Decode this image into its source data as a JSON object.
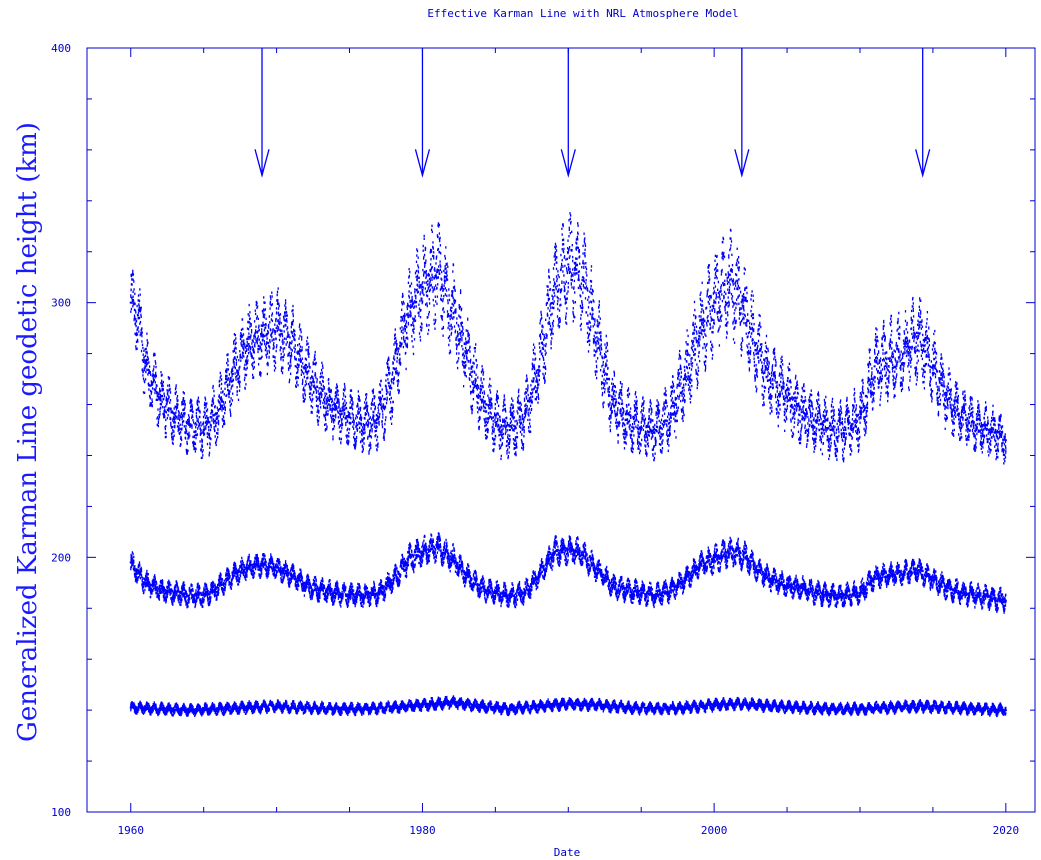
{
  "chart_data": {
    "type": "scatter",
    "title": "Effective Karman Line with NRL Atmosphere Model",
    "xlabel": "Date",
    "ylabel": "Generalized Karman Line geodetic height (km)",
    "xlim": [
      1957,
      2022
    ],
    "ylim": [
      100,
      400
    ],
    "x_ticks": [
      1960,
      1980,
      2000,
      2020
    ],
    "x_tick_labels": [
      "1960",
      "1980",
      "2000",
      "2020"
    ],
    "y_ticks": [
      100,
      200,
      300,
      400
    ],
    "y_tick_labels": [
      "100",
      "200",
      "300",
      "400"
    ],
    "grid": false,
    "color": "#0000ff",
    "series": [
      {
        "x": [
          1960.0,
          1960.5,
          1961.0,
          1962.0,
          1963.0,
          1964.0,
          1965.0,
          1966.0,
          1967.0,
          1968.0,
          1969.0,
          1970.0,
          1971.0,
          1972.0,
          1973.0,
          1974.0,
          1975.0,
          1976.0,
          1977.0,
          1978.0,
          1979.0,
          1980.0,
          1981.0,
          1982.0,
          1983.0,
          1984.0,
          1985.0,
          1986.0,
          1987.0,
          1988.0,
          1989.0,
          1990.0,
          1991.0,
          1992.0,
          1993.0,
          1994.0,
          1995.0,
          1996.0,
          1997.0,
          1998.0,
          1999.0,
          2000.0,
          2001.0,
          2002.0,
          2003.0,
          2004.0,
          2005.0,
          2006.0,
          2007.0,
          2008.0,
          2009.0,
          2010.0,
          2011.0,
          2012.0,
          2013.0,
          2014.0,
          2015.0,
          2016.0,
          2017.0,
          2018.0,
          2019.0,
          2020.0
        ],
        "y": [
          300,
          295,
          275,
          262,
          256,
          252,
          250,
          258,
          272,
          283,
          287,
          290,
          284,
          273,
          264,
          258,
          255,
          252,
          255,
          270,
          295,
          305,
          312,
          298,
          280,
          262,
          253,
          250,
          255,
          275,
          305,
          315,
          310,
          285,
          262,
          254,
          251,
          250,
          256,
          270,
          288,
          300,
          308,
          298,
          280,
          268,
          263,
          257,
          253,
          250,
          250,
          255,
          275,
          278,
          280,
          287,
          275,
          262,
          255,
          251,
          249,
          246
        ],
        "spread": [
          13,
          13,
          12,
          11,
          10,
          10,
          10,
          11,
          12,
          13,
          13,
          14,
          13,
          12,
          11,
          10,
          10,
          10,
          11,
          13,
          15,
          17,
          18,
          16,
          14,
          12,
          11,
          10,
          11,
          14,
          17,
          18,
          17,
          15,
          12,
          11,
          10,
          10,
          11,
          14,
          16,
          17,
          18,
          16,
          14,
          13,
          12,
          11,
          10,
          10,
          10,
          11,
          13,
          14,
          14,
          15,
          13,
          11,
          10,
          9,
          9,
          8
        ]
      },
      {
        "x": [
          1960.0,
          1961.0,
          1962.0,
          1963.0,
          1964.0,
          1965.0,
          1966.0,
          1967.0,
          1968.0,
          1969.0,
          1970.0,
          1971.0,
          1972.0,
          1973.0,
          1974.0,
          1975.0,
          1976.0,
          1977.0,
          1978.0,
          1979.0,
          1980.0,
          1981.0,
          1982.0,
          1983.0,
          1984.0,
          1985.0,
          1986.0,
          1987.0,
          1988.0,
          1989.0,
          1990.0,
          1991.0,
          1992.0,
          1993.0,
          1994.0,
          1995.0,
          1996.0,
          1997.0,
          1998.0,
          1999.0,
          2000.0,
          2001.0,
          2002.0,
          2003.0,
          2004.0,
          2005.0,
          2006.0,
          2007.0,
          2008.0,
          2009.0,
          2010.0,
          2011.0,
          2012.0,
          2013.0,
          2014.0,
          2015.0,
          2016.0,
          2017.0,
          2018.0,
          2019.0,
          2020.0
        ],
        "y": [
          198,
          190,
          187,
          186,
          185,
          185,
          188,
          193,
          196,
          197,
          196,
          193,
          189,
          187,
          186,
          185,
          185,
          186,
          191,
          199,
          202,
          204,
          200,
          193,
          188,
          186,
          185,
          186,
          193,
          202,
          203,
          201,
          195,
          189,
          187,
          186,
          185,
          187,
          191,
          197,
          199,
          202,
          201,
          195,
          191,
          189,
          188,
          186,
          185,
          185,
          186,
          192,
          193,
          194,
          195,
          191,
          188,
          186,
          185,
          184,
          183
        ],
        "spread": [
          4,
          4,
          4,
          4,
          4,
          4,
          4,
          4,
          4,
          4,
          4,
          4,
          4,
          4,
          4,
          4,
          4,
          4,
          4,
          5,
          5,
          5,
          5,
          4,
          4,
          4,
          4,
          4,
          4,
          5,
          5,
          5,
          4,
          4,
          4,
          4,
          4,
          4,
          4,
          4,
          5,
          5,
          5,
          4,
          4,
          4,
          4,
          4,
          4,
          4,
          4,
          4,
          4,
          4,
          4,
          4,
          4,
          4,
          4,
          4,
          4
        ]
      },
      {
        "x": [
          1960.0,
          1962.0,
          1964.0,
          1966.0,
          1968.0,
          1970.0,
          1972.0,
          1974.0,
          1976.0,
          1978.0,
          1980.0,
          1982.0,
          1984.0,
          1986.0,
          1988.0,
          1990.0,
          1992.0,
          1994.0,
          1996.0,
          1998.0,
          2000.0,
          2002.0,
          2004.0,
          2006.0,
          2008.0,
          2010.0,
          2012.0,
          2014.0,
          2016.0,
          2018.0,
          2020.0
        ],
        "y": [
          141,
          140.5,
          140,
          140.5,
          141,
          141.5,
          141,
          140.5,
          140.5,
          141,
          142,
          143,
          141.5,
          140.5,
          141.5,
          142.5,
          142,
          141,
          140.5,
          141,
          142,
          142.5,
          141.5,
          141,
          140.5,
          140.5,
          141,
          141.5,
          141,
          140.5,
          140
        ],
        "spread": [
          2,
          2,
          2,
          2,
          2,
          2,
          2,
          2,
          2,
          2,
          2,
          2,
          2,
          2,
          2,
          2,
          2,
          2,
          2,
          2,
          2,
          2,
          2,
          2,
          2,
          2,
          2,
          2,
          2,
          2,
          2
        ]
      }
    ],
    "annotations": [
      {
        "type": "arrow",
        "x": 1969.0,
        "y_start": 400,
        "y_end": 350
      },
      {
        "type": "arrow",
        "x": 1980.0,
        "y_start": 400,
        "y_end": 350
      },
      {
        "type": "arrow",
        "x": 1990.0,
        "y_start": 400,
        "y_end": 350
      },
      {
        "type": "arrow",
        "x": 2001.9,
        "y_start": 400,
        "y_end": 350
      },
      {
        "type": "arrow",
        "x": 2014.3,
        "y_start": 400,
        "y_end": 350
      }
    ]
  }
}
